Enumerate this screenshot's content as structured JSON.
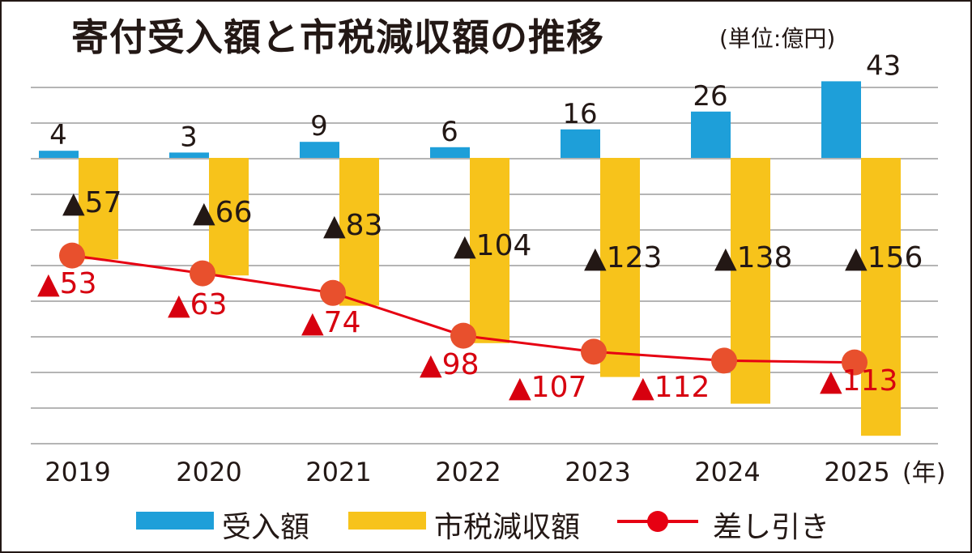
{
  "title": "寄付受入額と市税減収額の推移",
  "unit": "(単位:億円)",
  "x_unit": "(年)",
  "colors": {
    "received": "#1E9FD9",
    "tax_loss": "#F7C31B",
    "net": "#E60012",
    "net_marker": "#E8502D",
    "text": "#231815",
    "net_label": "#D7000F",
    "grid": "#B5B5B5"
  },
  "chart_data": {
    "type": "bar",
    "title": "寄付受入額と市税減収額の推移",
    "categories": [
      "2019",
      "2020",
      "2021",
      "2022",
      "2023",
      "2024",
      "2025"
    ],
    "xlabel": "(年)",
    "ylabel": "(単位:億円)",
    "grid": true,
    "legend": "bottom",
    "series": [
      {
        "name": "受入額",
        "type": "bar",
        "values": [
          4,
          3,
          9,
          6,
          16,
          26,
          43
        ],
        "labels": [
          "4",
          "3",
          "9",
          "6",
          "16",
          "26",
          "43"
        ]
      },
      {
        "name": "市税減収額",
        "type": "bar",
        "values": [
          -57,
          -66,
          -83,
          -104,
          -123,
          -138,
          -156
        ],
        "labels": [
          "▲57",
          "▲66",
          "▲83",
          "▲104",
          "▲123",
          "▲138",
          "▲156"
        ]
      },
      {
        "name": "差し引き",
        "type": "line",
        "values": [
          -53,
          -63,
          -74,
          -98,
          -107,
          -112,
          -113
        ],
        "labels": [
          "▲53",
          "▲63",
          "▲74",
          "▲98",
          "▲107",
          "▲112",
          "▲113"
        ]
      }
    ]
  },
  "legend": {
    "received": "受入額",
    "tax_loss": "市税減収額",
    "net": "差し引き"
  }
}
